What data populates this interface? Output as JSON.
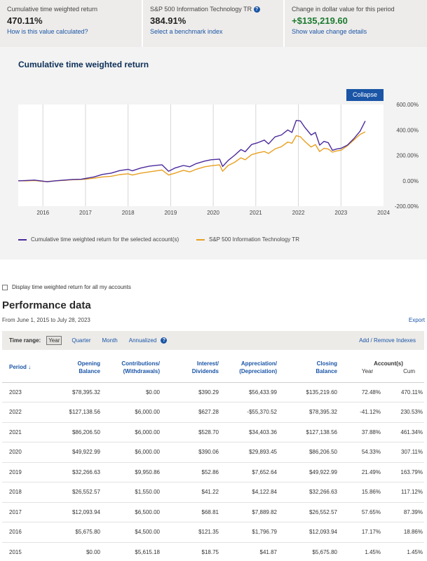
{
  "summary": {
    "cumulative": {
      "label": "Cumulative time weighted return",
      "value": "470.11%",
      "link": "How is this value calculated?"
    },
    "benchmark": {
      "label": "S&P 500 Information Technology TR",
      "help_icon": "question-icon",
      "value": "384.91%",
      "link": "Select a benchmark index"
    },
    "change": {
      "label": "Change in dollar value for this period",
      "value": "+$135,219.60",
      "link": "Show value change details"
    }
  },
  "chart": {
    "title": "Cumulative time weighted return",
    "collapse_label": "Collapse",
    "legend": {
      "account": "Cumulative time weighted return for the selected account(s)",
      "benchmark": "S&P 500 Information Technology TR"
    }
  },
  "chart_data": {
    "type": "line",
    "title": "Cumulative time weighted return",
    "xlabel": "",
    "ylabel": "",
    "x_ticks": [
      "2016",
      "2017",
      "2018",
      "2019",
      "2020",
      "2021",
      "2022",
      "2023",
      "2024"
    ],
    "y_ticks": [
      "600.00%",
      "400.00%",
      "200.00%",
      "0.00%",
      "-200.00%"
    ],
    "ylim": [
      -200,
      600
    ],
    "xlim": [
      2015.42,
      2024.0
    ],
    "grid": "vertical",
    "series": [
      {
        "name": "Cumulative time weighted return for the selected account(s)",
        "color": "#4b2a9c",
        "points": [
          [
            2015.42,
            0
          ],
          [
            2015.6,
            2
          ],
          [
            2015.8,
            5
          ],
          [
            2016.0,
            -3
          ],
          [
            2016.1,
            -8
          ],
          [
            2016.3,
            0
          ],
          [
            2016.5,
            5
          ],
          [
            2016.7,
            10
          ],
          [
            2016.9,
            12
          ],
          [
            2017.0,
            18
          ],
          [
            2017.2,
            30
          ],
          [
            2017.4,
            50
          ],
          [
            2017.6,
            60
          ],
          [
            2017.8,
            80
          ],
          [
            2018.0,
            90
          ],
          [
            2018.1,
            78
          ],
          [
            2018.3,
            100
          ],
          [
            2018.5,
            115
          ],
          [
            2018.7,
            122
          ],
          [
            2018.8,
            125
          ],
          [
            2018.95,
            75
          ],
          [
            2019.1,
            100
          ],
          [
            2019.3,
            120
          ],
          [
            2019.45,
            110
          ],
          [
            2019.6,
            135
          ],
          [
            2019.8,
            155
          ],
          [
            2019.95,
            165
          ],
          [
            2020.15,
            170
          ],
          [
            2020.22,
            112
          ],
          [
            2020.35,
            160
          ],
          [
            2020.5,
            200
          ],
          [
            2020.65,
            245
          ],
          [
            2020.75,
            228
          ],
          [
            2020.9,
            285
          ],
          [
            2021.05,
            300
          ],
          [
            2021.2,
            320
          ],
          [
            2021.3,
            290
          ],
          [
            2021.45,
            345
          ],
          [
            2021.6,
            360
          ],
          [
            2021.75,
            400
          ],
          [
            2021.85,
            380
          ],
          [
            2021.95,
            475
          ],
          [
            2022.05,
            470
          ],
          [
            2022.15,
            420
          ],
          [
            2022.3,
            360
          ],
          [
            2022.4,
            380
          ],
          [
            2022.5,
            280
          ],
          [
            2022.6,
            310
          ],
          [
            2022.7,
            300
          ],
          [
            2022.8,
            240
          ],
          [
            2022.9,
            250
          ],
          [
            2023.0,
            255
          ],
          [
            2023.15,
            280
          ],
          [
            2023.3,
            330
          ],
          [
            2023.45,
            390
          ],
          [
            2023.57,
            470
          ]
        ]
      },
      {
        "name": "S&P 500 Information Technology TR",
        "color": "#e8a020",
        "points": [
          [
            2015.42,
            0
          ],
          [
            2015.6,
            -1
          ],
          [
            2015.8,
            2
          ],
          [
            2016.0,
            -5
          ],
          [
            2016.1,
            -6
          ],
          [
            2016.3,
            -1
          ],
          [
            2016.5,
            3
          ],
          [
            2016.7,
            8
          ],
          [
            2016.9,
            10
          ],
          [
            2017.0,
            12
          ],
          [
            2017.2,
            20
          ],
          [
            2017.4,
            30
          ],
          [
            2017.6,
            35
          ],
          [
            2017.8,
            48
          ],
          [
            2018.0,
            55
          ],
          [
            2018.1,
            45
          ],
          [
            2018.3,
            60
          ],
          [
            2018.5,
            70
          ],
          [
            2018.7,
            80
          ],
          [
            2018.8,
            84
          ],
          [
            2018.95,
            45
          ],
          [
            2019.1,
            60
          ],
          [
            2019.3,
            82
          ],
          [
            2019.45,
            70
          ],
          [
            2019.6,
            90
          ],
          [
            2019.8,
            110
          ],
          [
            2019.95,
            118
          ],
          [
            2020.15,
            125
          ],
          [
            2020.22,
            75
          ],
          [
            2020.35,
            120
          ],
          [
            2020.5,
            145
          ],
          [
            2020.65,
            180
          ],
          [
            2020.75,
            165
          ],
          [
            2020.9,
            205
          ],
          [
            2021.05,
            220
          ],
          [
            2021.2,
            230
          ],
          [
            2021.3,
            215
          ],
          [
            2021.45,
            250
          ],
          [
            2021.6,
            268
          ],
          [
            2021.75,
            305
          ],
          [
            2021.85,
            295
          ],
          [
            2021.95,
            355
          ],
          [
            2022.05,
            345
          ],
          [
            2022.15,
            310
          ],
          [
            2022.3,
            265
          ],
          [
            2022.4,
            285
          ],
          [
            2022.5,
            230
          ],
          [
            2022.6,
            255
          ],
          [
            2022.7,
            250
          ],
          [
            2022.8,
            225
          ],
          [
            2022.9,
            235
          ],
          [
            2023.0,
            240
          ],
          [
            2023.15,
            275
          ],
          [
            2023.3,
            320
          ],
          [
            2023.45,
            365
          ],
          [
            2023.57,
            385
          ]
        ]
      }
    ]
  },
  "all_accounts_label": "Display time weighted return for all my accounts",
  "performance": {
    "title": "Performance data",
    "date_range": "From June 1, 2015 to July 28, 2023",
    "export_label": "Export",
    "time_range": {
      "label": "Time range:",
      "options": [
        "Year",
        "Quarter",
        "Month",
        "Annualized"
      ],
      "selected": "Year",
      "help_icon": "question-icon",
      "add_remove": "Add / Remove Indexes"
    },
    "headers": {
      "period": "Period",
      "opening1": "Opening",
      "opening2": "Balance",
      "contrib1": "Contributions/",
      "contrib2": "(Withdrawals)",
      "interest1": "Interest/",
      "interest2": "Dividends",
      "apprec1": "Appreciation/",
      "apprec2": "(Depreciation)",
      "closing1": "Closing",
      "closing2": "Balance",
      "accounts": "Account(s)",
      "year": "Year",
      "cum": "Cum"
    },
    "rows": [
      {
        "period": "2023",
        "opening": "$78,395.32",
        "contrib": "$0.00",
        "interest": "$390.29",
        "apprec": "$56,433.99",
        "closing": "$135,219.60",
        "year": "72.48%",
        "cum": "470.11%"
      },
      {
        "period": "2022",
        "opening": "$127,138.56",
        "contrib": "$6,000.00",
        "interest": "$627.28",
        "apprec": "-$55,370.52",
        "closing": "$78,395.32",
        "year": "-41.12%",
        "cum": "230.53%"
      },
      {
        "period": "2021",
        "opening": "$86,206.50",
        "contrib": "$6,000.00",
        "interest": "$528.70",
        "apprec": "$34,403.36",
        "closing": "$127,138.56",
        "year": "37.88%",
        "cum": "461.34%"
      },
      {
        "period": "2020",
        "opening": "$49,922.99",
        "contrib": "$6,000.00",
        "interest": "$390.06",
        "apprec": "$29,893.45",
        "closing": "$86,206.50",
        "year": "54.33%",
        "cum": "307.11%"
      },
      {
        "period": "2019",
        "opening": "$32,266.63",
        "contrib": "$9,950.86",
        "interest": "$52.86",
        "apprec": "$7,652.64",
        "closing": "$49,922.99",
        "year": "21.49%",
        "cum": "163.79%"
      },
      {
        "period": "2018",
        "opening": "$26,552.57",
        "contrib": "$1,550.00",
        "interest": "$41.22",
        "apprec": "$4,122.84",
        "closing": "$32,266.63",
        "year": "15.86%",
        "cum": "117.12%"
      },
      {
        "period": "2017",
        "opening": "$12,093.94",
        "contrib": "$6,500.00",
        "interest": "$68.81",
        "apprec": "$7,889.82",
        "closing": "$26,552.57",
        "year": "57.65%",
        "cum": "87.39%"
      },
      {
        "period": "2016",
        "opening": "$5,675.80",
        "contrib": "$4,500.00",
        "interest": "$121.35",
        "apprec": "$1,796.79",
        "closing": "$12,093.94",
        "year": "17.17%",
        "cum": "18.86%"
      },
      {
        "period": "2015",
        "opening": "$0.00",
        "contrib": "$5,615.18",
        "interest": "$18.75",
        "apprec": "$41.87",
        "closing": "$5,675.80",
        "year": "1.45%",
        "cum": "1.45%"
      }
    ]
  }
}
